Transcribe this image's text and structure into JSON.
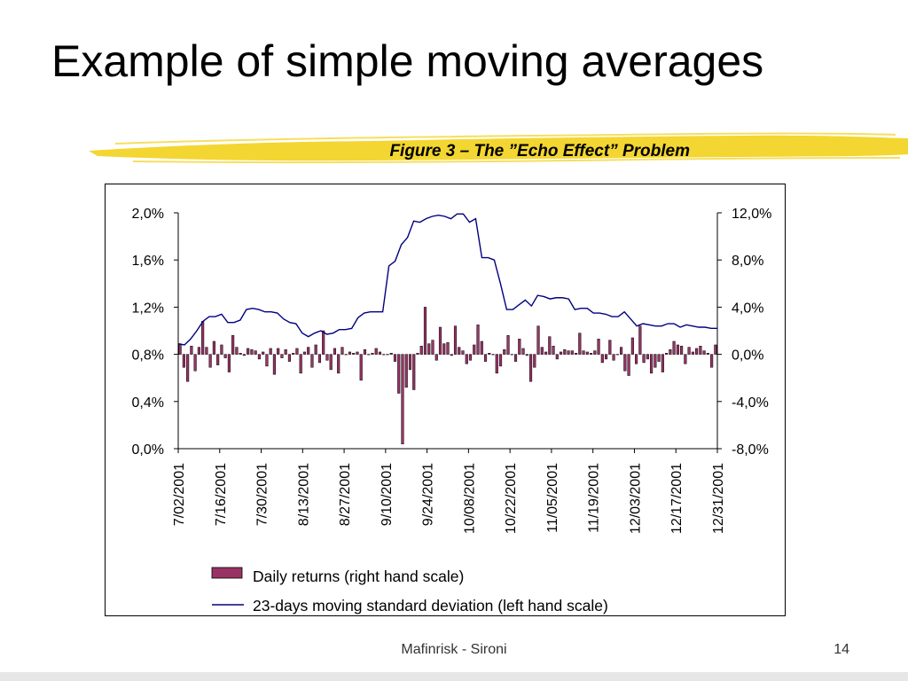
{
  "slide": {
    "title": "Example of simple moving averages",
    "caption": "Figure 3 – The ”Echo Effect” Problem",
    "footer": "Mafinrisk - Sironi",
    "page_number": "14"
  },
  "colors": {
    "bars": "#993366",
    "line": "#000080",
    "brush": "#f2d21b"
  },
  "chart_data": {
    "type": "bar+line",
    "left_axis": {
      "ylim": [
        0.0,
        2.0
      ],
      "ticks": [
        "0,0%",
        "0,4%",
        "0,8%",
        "1,2%",
        "1,6%",
        "2,0%"
      ]
    },
    "right_axis": {
      "ylim": [
        -8.0,
        12.0
      ],
      "ticks": [
        "-8,0%",
        "-4,0%",
        "0,0%",
        "4,0%",
        "8,0%",
        "12,0%"
      ]
    },
    "x_ticks": [
      "7/02/2001",
      "7/16/2001",
      "7/30/2001",
      "8/13/2001",
      "8/27/2001",
      "9/10/2001",
      "9/24/2001",
      "10/08/2001",
      "10/22/2001",
      "11/05/2001",
      "11/19/2001",
      "12/03/2001",
      "12/17/2001",
      "12/31/2001"
    ],
    "legend": [
      "Daily returns (right hand scale)",
      "23-days moving standard deviation (left hand scale)"
    ],
    "series": [
      {
        "name": "Daily returns (right hand scale)",
        "axis": "right",
        "values": [
          0.9,
          -1.1,
          -2.3,
          0.7,
          -1.4,
          0.6,
          2.8,
          0.6,
          -1.1,
          1.1,
          -0.9,
          0.8,
          -0.3,
          -1.5,
          1.6,
          0.6,
          0.1,
          -0.1,
          0.5,
          0.4,
          0.3,
          -0.4,
          0.2,
          -1.0,
          0.5,
          -1.7,
          0.5,
          -0.3,
          0.4,
          -0.6,
          0.1,
          0.5,
          -1.6,
          0.2,
          0.6,
          -1.1,
          0.8,
          -0.7,
          2.0,
          -0.5,
          -1.3,
          0.5,
          -1.6,
          0.6,
          0.0,
          0.2,
          0.1,
          0.2,
          -2.2,
          0.4,
          0.0,
          0.1,
          0.5,
          0.2,
          0.0,
          0.0,
          0.1,
          -0.6,
          -3.3,
          -7.6,
          -2.8,
          -1.3,
          -3.0,
          0.1,
          0.7,
          4.0,
          0.9,
          1.2,
          -0.5,
          2.3,
          0.9,
          1.0,
          -0.1,
          2.4,
          0.6,
          0.3,
          -0.8,
          -0.5,
          0.8,
          2.5,
          1.1,
          -0.6,
          0.1,
          0.0,
          -1.6,
          -1.0,
          0.4,
          1.6,
          0.0,
          -0.6,
          1.3,
          0.5,
          -0.1,
          -2.3,
          -1.1,
          2.4,
          0.6,
          0.2,
          1.5,
          0.7,
          -0.4,
          0.2,
          0.4,
          0.3,
          0.3,
          0.1,
          1.8,
          0.3,
          0.2,
          0.1,
          0.3,
          1.3,
          -0.7,
          -0.4,
          1.2,
          -0.5,
          0.0,
          0.6,
          -1.4,
          -1.8,
          1.4,
          -0.8,
          2.4,
          -0.7,
          -0.4,
          -1.6,
          -1.1,
          -0.6,
          -1.5,
          0.1,
          0.4,
          1.1,
          0.8,
          0.7,
          -0.8,
          0.6,
          0.2,
          0.5,
          0.7,
          0.3,
          0.1,
          -1.1,
          0.8
        ]
      },
      {
        "name": "23-days moving standard deviation (left hand scale)",
        "axis": "left",
        "values": [
          0.89,
          0.88,
          0.93,
          1.0,
          1.08,
          1.12,
          1.12,
          1.14,
          1.07,
          1.07,
          1.09,
          1.18,
          1.19,
          1.18,
          1.16,
          1.16,
          1.15,
          1.1,
          1.07,
          1.06,
          0.98,
          0.95,
          0.98,
          1.0,
          0.97,
          0.98,
          1.01,
          1.01,
          1.02,
          1.11,
          1.15,
          1.16,
          1.16,
          1.16,
          1.55,
          1.59,
          1.73,
          1.79,
          1.93,
          1.92,
          1.95,
          1.97,
          1.98,
          1.97,
          1.95,
          1.99,
          1.99,
          1.92,
          1.95,
          1.62,
          1.62,
          1.6,
          1.4,
          1.18,
          1.18,
          1.22,
          1.26,
          1.21,
          1.3,
          1.29,
          1.27,
          1.28,
          1.28,
          1.27,
          1.18,
          1.19,
          1.19,
          1.15,
          1.15,
          1.14,
          1.12,
          1.12,
          1.16,
          1.1,
          1.04,
          1.06,
          1.05,
          1.04,
          1.04,
          1.06,
          1.06,
          1.03,
          1.05,
          1.04,
          1.03,
          1.03,
          1.02,
          1.02
        ]
      }
    ]
  }
}
